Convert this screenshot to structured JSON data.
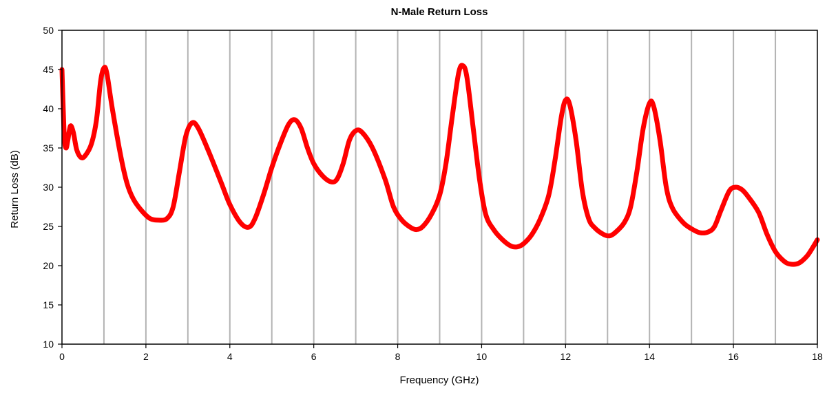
{
  "chart_data": {
    "type": "line",
    "title": "N-Male  Return Loss",
    "xlabel": "Frequency (GHz)",
    "ylabel": "Return Loss (dB)",
    "xlim": [
      0,
      18
    ],
    "ylim": [
      10,
      50
    ],
    "xticks": [
      0,
      2,
      4,
      6,
      8,
      10,
      12,
      14,
      16,
      18
    ],
    "yticks": [
      10,
      15,
      20,
      25,
      30,
      35,
      40,
      45,
      50
    ],
    "vertical_grid": true,
    "vertical_grid_step": 1,
    "horizontal_grid": false,
    "legend": "none",
    "series": [
      {
        "color": "#ff0000",
        "points": [
          [
            0.0,
            45.0
          ],
          [
            0.03,
            40.0
          ],
          [
            0.06,
            36.0
          ],
          [
            0.1,
            35.0
          ],
          [
            0.14,
            36.0
          ],
          [
            0.2,
            37.8
          ],
          [
            0.27,
            37.0
          ],
          [
            0.35,
            34.8
          ],
          [
            0.45,
            33.8
          ],
          [
            0.55,
            34.0
          ],
          [
            0.7,
            35.5
          ],
          [
            0.82,
            38.5
          ],
          [
            0.92,
            43.5
          ],
          [
            1.0,
            45.2
          ],
          [
            1.07,
            44.5
          ],
          [
            1.2,
            40.0
          ],
          [
            1.4,
            34.0
          ],
          [
            1.55,
            30.5
          ],
          [
            1.7,
            28.5
          ],
          [
            1.9,
            27.0
          ],
          [
            2.1,
            26.0
          ],
          [
            2.3,
            25.8
          ],
          [
            2.5,
            26.0
          ],
          [
            2.65,
            27.5
          ],
          [
            2.8,
            32.0
          ],
          [
            2.95,
            36.5
          ],
          [
            3.1,
            38.2
          ],
          [
            3.25,
            37.5
          ],
          [
            3.5,
            34.5
          ],
          [
            3.8,
            30.5
          ],
          [
            4.0,
            27.8
          ],
          [
            4.25,
            25.5
          ],
          [
            4.45,
            24.9
          ],
          [
            4.6,
            26.0
          ],
          [
            4.8,
            29.0
          ],
          [
            5.0,
            32.5
          ],
          [
            5.2,
            35.5
          ],
          [
            5.4,
            38.0
          ],
          [
            5.55,
            38.6
          ],
          [
            5.7,
            37.5
          ],
          [
            5.85,
            35.0
          ],
          [
            6.0,
            33.0
          ],
          [
            6.2,
            31.5
          ],
          [
            6.4,
            30.7
          ],
          [
            6.55,
            31.0
          ],
          [
            6.7,
            33.0
          ],
          [
            6.85,
            36.0
          ],
          [
            7.0,
            37.2
          ],
          [
            7.15,
            37.0
          ],
          [
            7.4,
            35.0
          ],
          [
            7.7,
            31.0
          ],
          [
            7.9,
            27.5
          ],
          [
            8.1,
            25.8
          ],
          [
            8.3,
            24.9
          ],
          [
            8.45,
            24.6
          ],
          [
            8.6,
            25.0
          ],
          [
            8.8,
            26.5
          ],
          [
            9.0,
            29.0
          ],
          [
            9.15,
            33.0
          ],
          [
            9.3,
            39.0
          ],
          [
            9.45,
            44.5
          ],
          [
            9.55,
            45.5
          ],
          [
            9.65,
            44.0
          ],
          [
            9.8,
            37.5
          ],
          [
            9.95,
            31.0
          ],
          [
            10.1,
            26.5
          ],
          [
            10.3,
            24.5
          ],
          [
            10.5,
            23.3
          ],
          [
            10.7,
            22.5
          ],
          [
            10.85,
            22.4
          ],
          [
            11.0,
            22.8
          ],
          [
            11.2,
            24.0
          ],
          [
            11.4,
            26.0
          ],
          [
            11.6,
            29.0
          ],
          [
            11.75,
            33.5
          ],
          [
            11.9,
            39.0
          ],
          [
            12.0,
            41.1
          ],
          [
            12.1,
            40.5
          ],
          [
            12.25,
            36.0
          ],
          [
            12.4,
            29.5
          ],
          [
            12.55,
            26.0
          ],
          [
            12.7,
            24.8
          ],
          [
            12.9,
            24.0
          ],
          [
            13.05,
            23.8
          ],
          [
            13.2,
            24.3
          ],
          [
            13.4,
            25.5
          ],
          [
            13.55,
            27.5
          ],
          [
            13.7,
            32.0
          ],
          [
            13.85,
            37.5
          ],
          [
            14.0,
            40.7
          ],
          [
            14.1,
            40.3
          ],
          [
            14.25,
            36.0
          ],
          [
            14.4,
            30.0
          ],
          [
            14.55,
            27.3
          ],
          [
            14.8,
            25.5
          ],
          [
            15.0,
            24.7
          ],
          [
            15.2,
            24.2
          ],
          [
            15.4,
            24.3
          ],
          [
            15.55,
            25.0
          ],
          [
            15.7,
            27.0
          ],
          [
            15.9,
            29.5
          ],
          [
            16.05,
            30.0
          ],
          [
            16.2,
            29.7
          ],
          [
            16.35,
            28.8
          ],
          [
            16.6,
            26.8
          ],
          [
            16.8,
            24.0
          ],
          [
            17.0,
            21.8
          ],
          [
            17.2,
            20.6
          ],
          [
            17.35,
            20.2
          ],
          [
            17.55,
            20.3
          ],
          [
            17.75,
            21.2
          ],
          [
            17.9,
            22.4
          ],
          [
            18.0,
            23.3
          ]
        ]
      }
    ]
  }
}
